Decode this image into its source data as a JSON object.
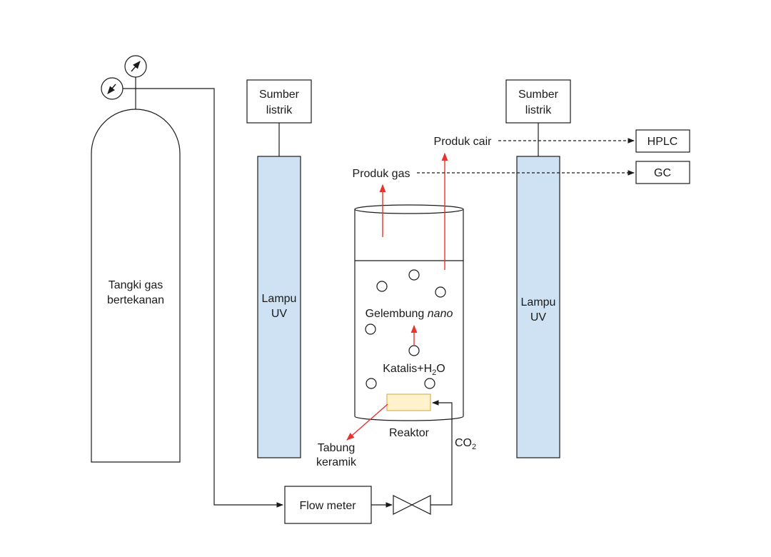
{
  "colors": {
    "line": "#1a1a1a",
    "lamp_fill": "#cfe2f3",
    "ceramic_fill": "#fff2cc",
    "ceramic_stroke": "#d6b656",
    "arrow_red": "#e8332e"
  },
  "tank": {
    "label_line1": "Tangki gas",
    "label_line2": "bertekanan"
  },
  "power_left": {
    "line1": "Sumber",
    "line2": "listrik"
  },
  "power_right": {
    "line1": "Sumber",
    "line2": "listrik"
  },
  "lamp_left": {
    "line1": "Lampu",
    "line2": "UV"
  },
  "lamp_right": {
    "line1": "Lampu",
    "line2": "UV"
  },
  "reactor": {
    "bubbles_label_main": "Gelembung ",
    "bubbles_label_italic": "nano",
    "catalyst_a": "Katalis+H",
    "catalyst_sub": "2",
    "catalyst_b": "O",
    "name": "Reaktor"
  },
  "ceramic_tube": {
    "line1": "Tabung",
    "line2": "keramik"
  },
  "co2": {
    "main": "CO",
    "sub": "2"
  },
  "flow_meter": "Flow meter",
  "product_liquid": "Produk cair",
  "product_gas": "Produk gas",
  "hplc": "HPLC",
  "gc": "GC",
  "icons": {
    "gauge": "pressure-gauge-icon",
    "valve": "valve-icon"
  }
}
